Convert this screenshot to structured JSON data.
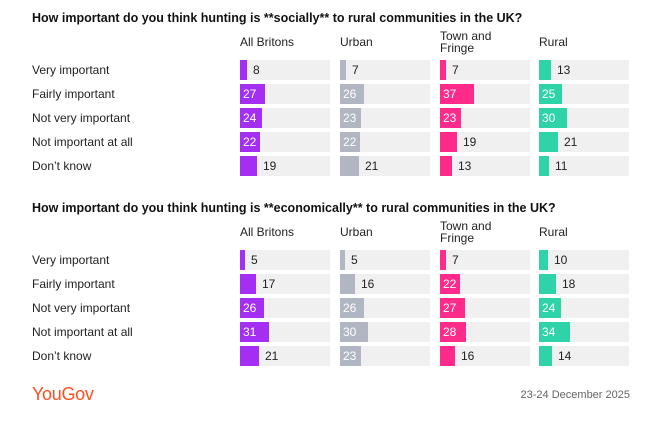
{
  "colors": {
    "all_britons": "#a42ff3",
    "urban": "#b1b6c2",
    "town_and_fringe": "#ff2a8a",
    "rural": "#2fd3a8",
    "track": "#f0f0f0"
  },
  "chart_data": [
    {
      "type": "bar",
      "title": "How important do you think hunting is **socially** to rural communities in the UK?",
      "categories": [
        "Very important",
        "Fairly important",
        "Not very important",
        "Not important at all",
        "Don’t know"
      ],
      "series": [
        {
          "name": "All Britons",
          "values": [
            8,
            27,
            24,
            22,
            19
          ]
        },
        {
          "name": "Urban",
          "values": [
            7,
            26,
            23,
            22,
            21
          ]
        },
        {
          "name": "Town and Fringe",
          "values": [
            7,
            37,
            23,
            19,
            13
          ]
        },
        {
          "name": "Rural",
          "values": [
            13,
            25,
            30,
            21,
            11
          ]
        }
      ],
      "xlim": [
        0,
        100
      ]
    },
    {
      "type": "bar",
      "title": "How important do you think hunting is **economically** to rural communities in the UK?",
      "categories": [
        "Very important",
        "Fairly important",
        "Not very important",
        "Not important at all",
        "Don’t know"
      ],
      "series": [
        {
          "name": "All Britons",
          "values": [
            5,
            17,
            26,
            31,
            21
          ]
        },
        {
          "name": "Urban",
          "values": [
            5,
            16,
            26,
            30,
            23
          ]
        },
        {
          "name": "Town and Fringe",
          "values": [
            7,
            22,
            27,
            28,
            16
          ]
        },
        {
          "name": "Rural",
          "values": [
            10,
            18,
            24,
            34,
            14
          ]
        }
      ],
      "xlim": [
        0,
        100
      ]
    }
  ],
  "footer": {
    "logo": "YouGov",
    "date": "23-24 December 2025"
  }
}
